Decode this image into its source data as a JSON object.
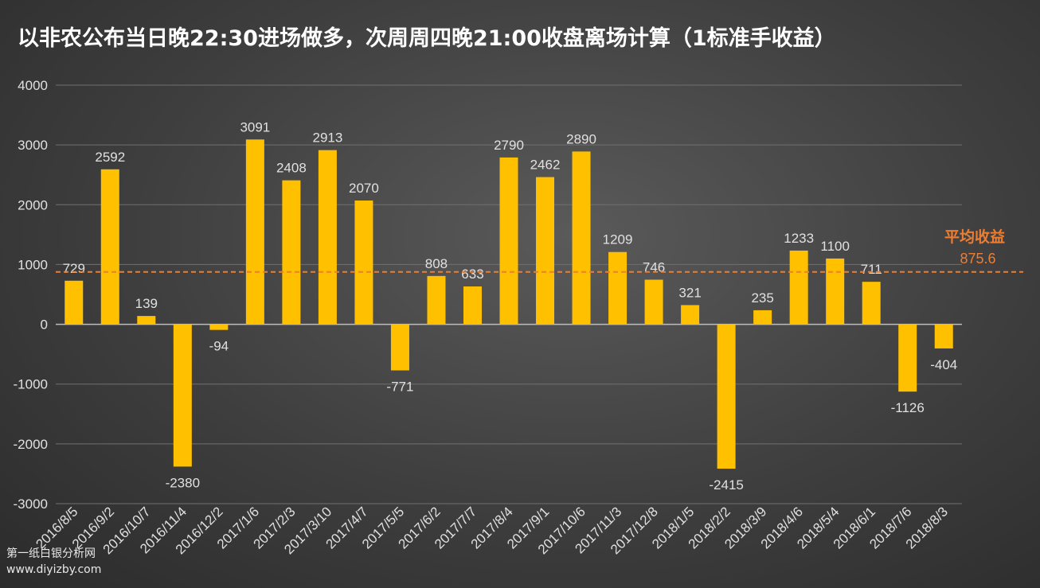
{
  "title": "以非农公布当日晚22:30进场做多，次周周四晚21:00收盘离场计算（1标准手收益）",
  "colors": {
    "bar": "#FFC000",
    "avg_line": "#ED7D31",
    "axis_text": "#E0E0E0",
    "grid": "#707070"
  },
  "chart_data": {
    "type": "bar",
    "title": "以非农公布当日晚22:30进场做多，次周周四晚21:00收盘离场计算（1标准手收益）",
    "xlabel": "",
    "ylabel": "",
    "ylim": [
      -3000,
      4000
    ],
    "yticks": [
      -3000,
      -2000,
      -1000,
      0,
      1000,
      2000,
      3000,
      4000
    ],
    "grid": true,
    "categories": [
      "2016/8/5",
      "2016/9/2",
      "2016/10/7",
      "2016/11/4",
      "2016/12/2",
      "2017/1/6",
      "2017/2/3",
      "2017/3/10",
      "2017/4/7",
      "2017/5/5",
      "2017/6/2",
      "2017/7/7",
      "2017/8/4",
      "2017/9/1",
      "2017/10/6",
      "2017/11/3",
      "2017/12/8",
      "2018/1/5",
      "2018/2/2",
      "2018/3/9",
      "2018/4/6",
      "2018/5/4",
      "2018/6/1",
      "2018/7/6",
      "2018/8/3"
    ],
    "values": [
      729,
      2592,
      139,
      -2380,
      -94,
      3091,
      2408,
      2913,
      2070,
      -771,
      808,
      633,
      2790,
      2462,
      2890,
      1209,
      746,
      321,
      -2415,
      235,
      1233,
      1100,
      711,
      -1126,
      -404
    ],
    "average": {
      "label": "平均收益",
      "value": 875.6
    }
  },
  "footer": {
    "line1": "第一纸白银分析网",
    "line2": "www.diyizby.com"
  }
}
